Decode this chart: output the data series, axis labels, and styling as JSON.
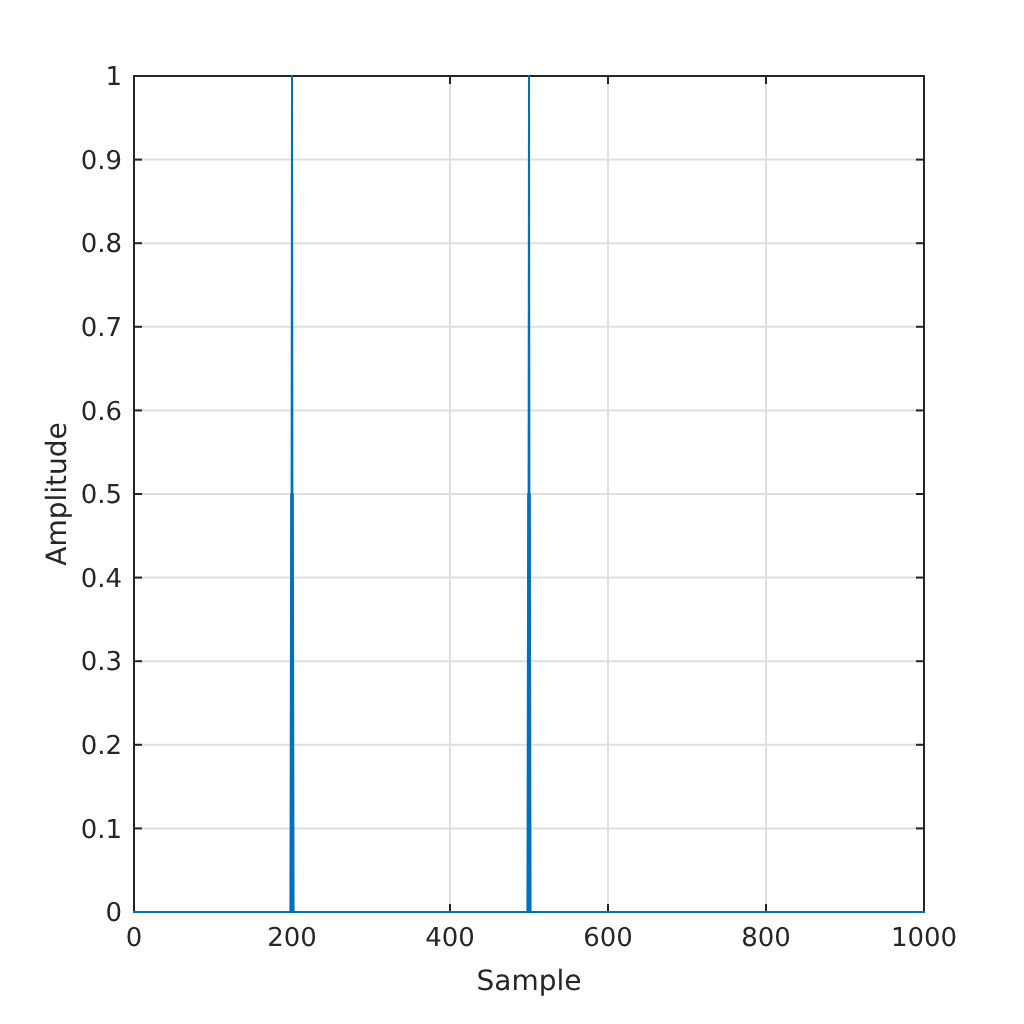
{
  "chart_data": {
    "type": "line",
    "xlabel": "Sample",
    "ylabel": "Amplitude",
    "series": [
      {
        "color": "#0072bd",
        "x": [
          0,
          199,
          200,
          201,
          499,
          500,
          501,
          1000
        ],
        "values": [
          0,
          0,
          1,
          0,
          0,
          1,
          0,
          0
        ]
      },
      {
        "color": "#0072bd",
        "x": [
          0,
          198,
          199,
          200,
          201,
          202,
          498,
          499,
          500,
          501,
          502,
          1000
        ],
        "values": [
          0,
          0,
          0.5,
          0.5,
          0.5,
          0,
          0,
          0.5,
          0.5,
          0.5,
          0,
          0
        ]
      }
    ],
    "xlim": [
      0,
      1000
    ],
    "xticks": [
      0,
      200,
      400,
      600,
      800,
      1000
    ],
    "ylim": [
      0,
      1
    ],
    "yticks": [
      0,
      0.1,
      0.2,
      0.3,
      0.4,
      0.5,
      0.6,
      0.7,
      0.8,
      0.9,
      1
    ],
    "grid": true,
    "marker": "none",
    "line_style": "solid"
  }
}
